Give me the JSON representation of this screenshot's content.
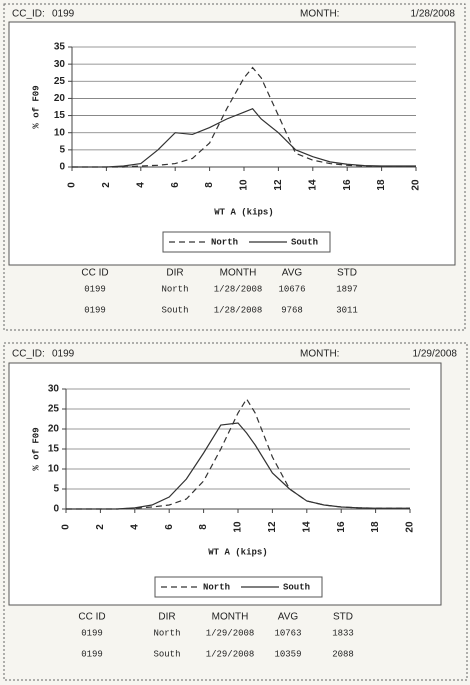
{
  "panels": [
    {
      "header": {
        "cc_id_label": "CC_ID:",
        "cc_id": "0199",
        "month_label": "MONTH:",
        "month": "1/28/2008"
      },
      "table": {
        "columns": [
          "CC ID",
          "DIR",
          "MONTH",
          "AVG",
          "STD"
        ],
        "rows": [
          [
            "0199",
            "North",
            "1/28/2008",
            "10676",
            "1897"
          ],
          [
            "0199",
            "South",
            "1/28/2008",
            "9768",
            "3011"
          ]
        ]
      }
    },
    {
      "header": {
        "cc_id_label": "CC_ID:",
        "cc_id": "0199",
        "month_label": "MONTH:",
        "month": "1/29/2008"
      },
      "table": {
        "columns": [
          "CC ID",
          "DIR",
          "MONTH",
          "AVG",
          "STD"
        ],
        "rows": [
          [
            "0199",
            "North",
            "1/29/2008",
            "10763",
            "1833"
          ],
          [
            "0199",
            "South",
            "1/29/2008",
            "10359",
            "2088"
          ]
        ]
      }
    }
  ],
  "chart_data": [
    {
      "type": "line",
      "x_label": "WT A (kips)",
      "y_label": "% of F09",
      "x": [
        0,
        1,
        2,
        3,
        4,
        5,
        6,
        7,
        8,
        9,
        10,
        10.5,
        11,
        12,
        13,
        14,
        15,
        16,
        17,
        18,
        19,
        20
      ],
      "series": [
        {
          "name": "North",
          "color": "#333333",
          "line_style": "dashed",
          "values": [
            0,
            0,
            0,
            0,
            0.3,
            0.5,
            1,
            2.5,
            7,
            17,
            26,
            29,
            26,
            15,
            4,
            2,
            1,
            0.5,
            0.3,
            0.2,
            0.2,
            0.2
          ]
        },
        {
          "name": "South",
          "color": "#333333",
          "line_style": "solid",
          "values": [
            0,
            0,
            0,
            0.3,
            1,
            5,
            10,
            9.5,
            11.5,
            14,
            16,
            17,
            14,
            10,
            5,
            3,
            1.5,
            0.8,
            0.4,
            0.3,
            0.3,
            0.3
          ]
        }
      ],
      "xlim": [
        0,
        20
      ],
      "xticks": [
        0,
        2,
        4,
        6,
        8,
        10,
        12,
        14,
        16,
        18,
        20
      ],
      "ylim": [
        0,
        35
      ],
      "yticks": [
        0,
        5,
        10,
        15,
        20,
        25,
        30,
        35
      ],
      "grid": true,
      "legend": "bottom"
    },
    {
      "type": "line",
      "x_label": "WT A (kips)",
      "y_label": "% of F09",
      "x": [
        0,
        1,
        2,
        3,
        4,
        5,
        6,
        7,
        8,
        9,
        10,
        10.5,
        11,
        12,
        13,
        14,
        15,
        16,
        17,
        18,
        19,
        20
      ],
      "series": [
        {
          "name": "North",
          "color": "#333333",
          "line_style": "dashed",
          "values": [
            0,
            0,
            0,
            0,
            0.2,
            0.5,
            1,
            2.5,
            7,
            15,
            24,
            27.5,
            24,
            13,
            5,
            2,
            1,
            0.5,
            0.3,
            0.2,
            0.2,
            0.2
          ]
        },
        {
          "name": "South",
          "color": "#333333",
          "line_style": "solid",
          "values": [
            0,
            0,
            0,
            0,
            0.3,
            1,
            3,
            7.5,
            14,
            21,
            21.5,
            19,
            16,
            9,
            5,
            2,
            1,
            0.5,
            0.3,
            0.2,
            0.2,
            0.2
          ]
        }
      ],
      "xlim": [
        0,
        20
      ],
      "xticks": [
        0,
        2,
        4,
        6,
        8,
        10,
        12,
        14,
        16,
        18,
        20
      ],
      "ylim": [
        0,
        30
      ],
      "yticks": [
        0,
        5,
        10,
        15,
        20,
        25,
        30
      ],
      "grid": true,
      "legend": "bottom"
    }
  ]
}
